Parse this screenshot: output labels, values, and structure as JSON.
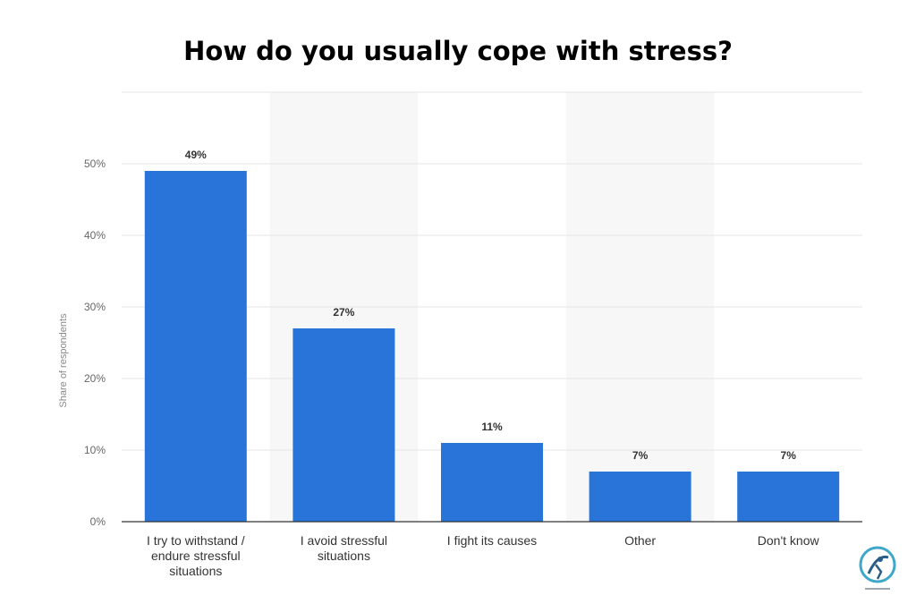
{
  "chart_data": {
    "type": "bar",
    "title": "How do you usually cope with stress?",
    "ylabel": "Share of respondents",
    "xlabel": "",
    "categories": [
      [
        "I try to withstand /",
        "endure stressful",
        "situations"
      ],
      [
        "I avoid stressful",
        "situations"
      ],
      [
        "I fight its causes"
      ],
      [
        "Other"
      ],
      [
        "Don't know"
      ]
    ],
    "values": [
      49,
      27,
      11,
      7,
      7
    ],
    "data_labels": [
      "49%",
      "27%",
      "11%",
      "7%",
      "7%"
    ],
    "yticks": [
      0,
      10,
      20,
      30,
      40,
      50
    ],
    "ytick_labels": [
      "0%",
      "10%",
      "20%",
      "30%",
      "40%",
      "50%"
    ],
    "ylim": [
      0,
      60
    ],
    "grid": true,
    "bar_color": "#2874d9"
  }
}
